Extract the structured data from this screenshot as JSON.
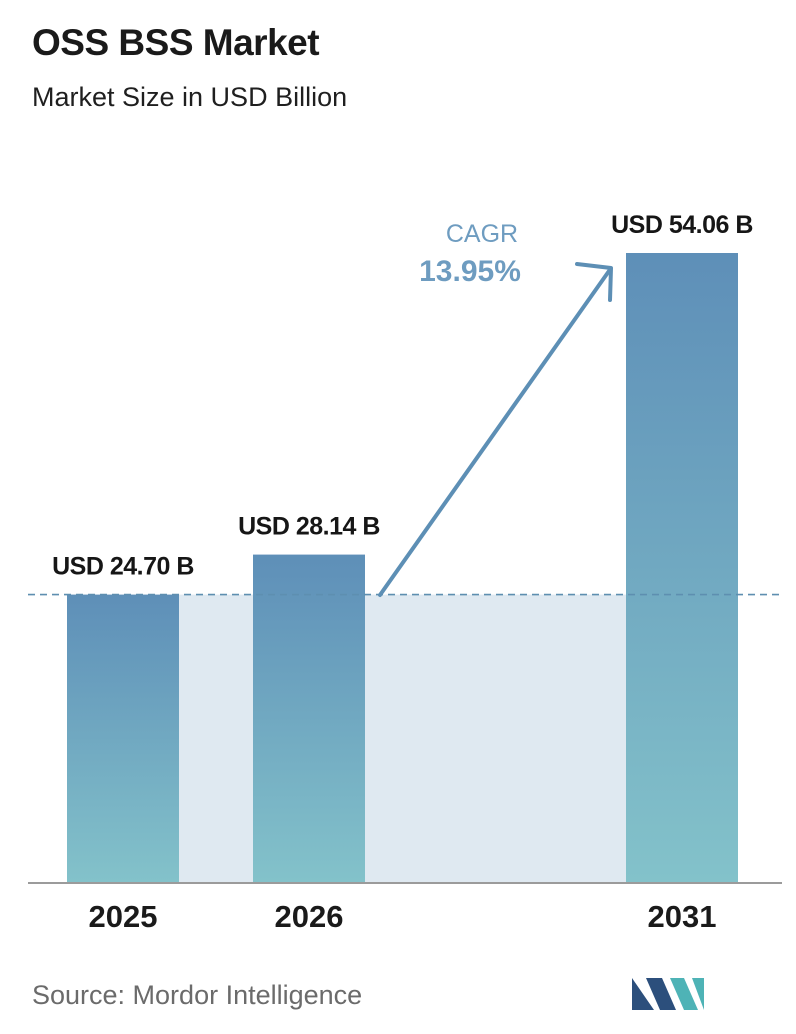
{
  "header": {
    "title": "OSS BSS Market",
    "subtitle": "Market Size in USD Billion"
  },
  "chart_data": {
    "type": "bar",
    "categories": [
      "2025",
      "2026",
      "2031"
    ],
    "values": [
      24.7,
      28.14,
      54.06
    ],
    "value_labels": [
      "USD 24.70 B",
      "USD 28.14 B",
      "USD 54.06 B"
    ],
    "ylim": [
      0,
      54.06
    ],
    "reference_line": 24.7,
    "grid": false,
    "annotation": {
      "label": "CAGR",
      "value": "13.95%"
    }
  },
  "colors": {
    "bar_top": "#5e8fb8",
    "bar_bottom": "#83c2ca",
    "band": "#dfe9f1",
    "arrow": "#5d8fb5",
    "cagr_label": "#6e9cc0",
    "cagr_value": "#6e9cc0",
    "dashed_line": "#5e8fb0",
    "axis": "#9b9b9b",
    "logo_left": "#2c4f7c",
    "logo_right": "#4eb3b6"
  },
  "footer": {
    "source": "Source:  Mordor Intelligence"
  },
  "logo": {
    "icon": "mordor-intelligence-logo"
  }
}
